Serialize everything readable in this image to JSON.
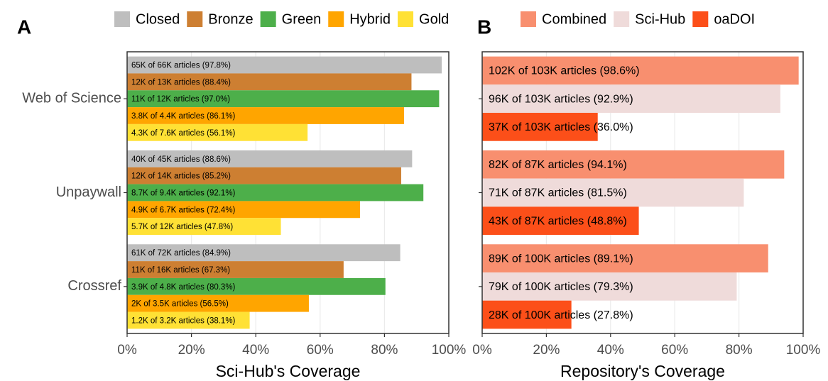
{
  "panels": [
    "A",
    "B"
  ],
  "chart_data": [
    {
      "type": "hbar",
      "x_label": "Sci-Hub's Coverage",
      "categories": [
        "Web of Science",
        "Unpaywall",
        "Crossref"
      ],
      "series": [
        {
          "name": "Closed",
          "color": "#bebebe",
          "values": [
            97.8,
            88.6,
            84.9
          ],
          "value_labels": [
            "65K of 66K articles (97.8%)",
            "40K of 45K articles (88.6%)",
            "61K of 72K articles (84.9%)"
          ]
        },
        {
          "name": "Bronze",
          "color": "#cd7f32",
          "values": [
            88.4,
            85.2,
            67.3
          ],
          "value_labels": [
            "12K of 13K articles (88.4%)",
            "12K of 14K articles (85.2%)",
            "11K of 16K articles (67.3%)"
          ]
        },
        {
          "name": "Green",
          "color": "#4daf4a",
          "values": [
            97.0,
            92.1,
            80.3
          ],
          "value_labels": [
            "11K of 12K articles (97.0%)",
            "8.7K of 9.4K articles (92.1%)",
            "3.9K of 4.8K articles (80.3%)"
          ]
        },
        {
          "name": "Hybrid",
          "color": "#ffa500",
          "values": [
            86.1,
            72.4,
            56.5
          ],
          "value_labels": [
            "3.8K of 4.4K articles (86.1%)",
            "4.9K of 6.7K articles (72.4%)",
            "2K of 3.5K articles (56.5%)"
          ]
        },
        {
          "name": "Gold",
          "color": "#ffe135",
          "values": [
            56.1,
            47.8,
            38.1
          ],
          "value_labels": [
            "4.3K of 7.6K articles (56.1%)",
            "5.7K of 12K articles (47.8%)",
            "1.2K of 3.2K articles (38.1%)"
          ]
        }
      ],
      "xlim": [
        0,
        100
      ],
      "xticks": [
        {
          "value": 0,
          "label": "0%"
        },
        {
          "value": 20,
          "label": "20%"
        },
        {
          "value": 40,
          "label": "40%"
        },
        {
          "value": 60,
          "label": "60%"
        },
        {
          "value": 80,
          "label": "80%"
        },
        {
          "value": 100,
          "label": "100%"
        }
      ],
      "grid": true
    },
    {
      "type": "hbar",
      "x_label": "Repository's Coverage",
      "categories": [
        null,
        null,
        null
      ],
      "series": [
        {
          "name": "Combined",
          "color": "#f88f6f",
          "values": [
            98.6,
            94.1,
            89.1
          ],
          "value_labels": [
            "102K of 103K articles (98.6%)",
            "82K of 87K articles (94.1%)",
            "89K of 100K articles (89.1%)"
          ]
        },
        {
          "name": "Sci-Hub",
          "color": "#efdbda",
          "values": [
            92.9,
            81.5,
            79.3
          ],
          "value_labels": [
            "96K of 103K articles (92.9%)",
            "71K of 87K articles (81.5%)",
            "79K of 100K articles (79.3%)"
          ]
        },
        {
          "name": "oaDOI",
          "color": "#fc4f19",
          "values": [
            36.0,
            48.8,
            27.8
          ],
          "value_labels": [
            "37K of 103K articles (36.0%)",
            "43K of 87K articles (48.8%)",
            "28K of 100K articles (27.8%)"
          ]
        }
      ],
      "xlim": [
        0,
        100
      ],
      "xticks": [
        {
          "value": 0,
          "label": "0%"
        },
        {
          "value": 20,
          "label": "20%"
        },
        {
          "value": 40,
          "label": "40%"
        },
        {
          "value": 60,
          "label": "60%"
        },
        {
          "value": 80,
          "label": "80%"
        },
        {
          "value": 100,
          "label": "100%"
        }
      ],
      "grid": true
    }
  ]
}
